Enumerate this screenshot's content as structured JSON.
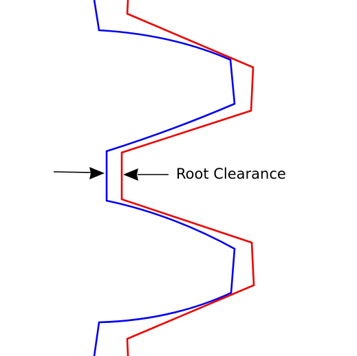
{
  "annotation": {
    "label": "Root Clearance"
  },
  "colors": {
    "profile_a": "#0000ee",
    "profile_b": "#ee0000",
    "arrow": "#000000",
    "text": "#000000",
    "background": "#ffffff"
  }
}
